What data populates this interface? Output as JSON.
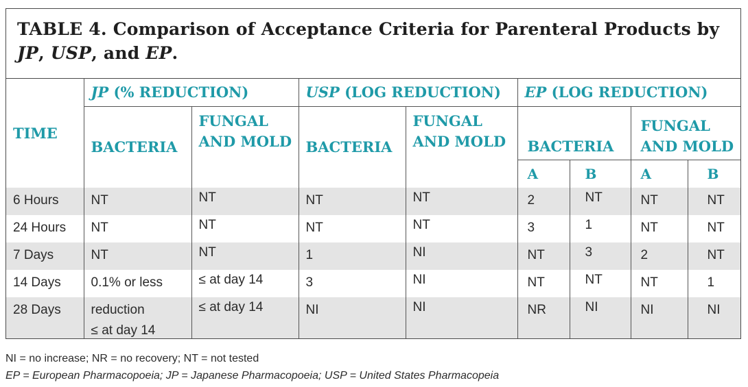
{
  "title": {
    "prefix": "TABLE 4. Comparison of Acceptance Criteria for Parenteral Products by ",
    "jp": "JP",
    "sep1": ", ",
    "usp": "USP",
    "sep2": ", and ",
    "ep": "EP",
    "suffix": "."
  },
  "headers": {
    "time": "TIME",
    "jp_abbr": "JP",
    "jp_rest": " (% REDUCTION)",
    "usp_abbr": "USP",
    "usp_rest": " (LOG REDUCTION)",
    "ep_abbr": "EP",
    "ep_rest": " (LOG REDUCTION)",
    "bacteria": "BACTERIA",
    "fungal_line1": "FUNGAL",
    "fungal_line2": "AND MOLD",
    "col_a": "A",
    "col_b": "B"
  },
  "rows": [
    {
      "time": "6 Hours",
      "jp_bacteria": [
        "NT"
      ],
      "jp_fungal": "NT",
      "usp_bacteria": "NT",
      "usp_fungal": "NT",
      "ep_bacteria_a": "2",
      "ep_bacteria_b": "NT",
      "ep_fungal_a": "NT",
      "ep_fungal_b": "NT"
    },
    {
      "time": "24 Hours",
      "jp_bacteria": [
        "NT"
      ],
      "jp_fungal": "NT",
      "usp_bacteria": "NT",
      "usp_fungal": "NT",
      "ep_bacteria_a": "3",
      "ep_bacteria_b": "1",
      "ep_fungal_a": "NT",
      "ep_fungal_b": "NT"
    },
    {
      "time": "7 Days",
      "jp_bacteria": [
        "NT"
      ],
      "jp_fungal": "NT",
      "usp_bacteria": "1",
      "usp_fungal": "NI",
      "ep_bacteria_a": "NT",
      "ep_bacteria_b": "3",
      "ep_fungal_a": "2",
      "ep_fungal_b": "NT"
    },
    {
      "time": "14 Days",
      "jp_bacteria": [
        "0.1% or less"
      ],
      "jp_fungal": "≤ at day 14",
      "usp_bacteria": "3",
      "usp_fungal": "NI",
      "ep_bacteria_a": "NT",
      "ep_bacteria_b": "NT",
      "ep_fungal_a": "NT",
      "ep_fungal_b": "1"
    },
    {
      "time": "28 Days",
      "jp_bacteria": [
        "reduction",
        "≤ at day 14"
      ],
      "jp_fungal": "≤ at day 14",
      "usp_bacteria": "NI",
      "usp_fungal": "NI",
      "ep_bacteria_a": "NR",
      "ep_bacteria_b": "NI",
      "ep_fungal_a": "NI",
      "ep_fungal_b": "NI"
    }
  ],
  "footnotes": {
    "line1": "NI = no increase; NR = no recovery; NT = not tested",
    "line2": "EP = European Pharmacopoeia; JP = Japanese Pharmacopoeia; USP = United States Pharmacopeia"
  },
  "colors": {
    "header_teal": "#1f9aa8",
    "shaded_row": "#e4e4e4",
    "border": "#4a4a4a"
  }
}
